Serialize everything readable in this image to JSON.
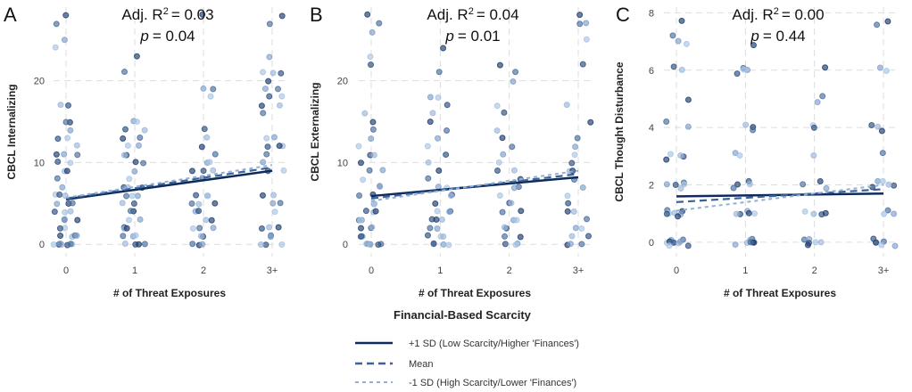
{
  "legend": {
    "title": "Financial-Based Scarcity",
    "entries": [
      {
        "label": "+1 SD (Low Scarcity/Higher 'Finances')",
        "color": "#0d2b5c",
        "dash": "solid"
      },
      {
        "label": "Mean",
        "color": "#3d6296",
        "dash": "dashed"
      },
      {
        "label": "-1 SD (High Scarcity/Lower 'Finances')",
        "color": "#8fb0d8",
        "dash": "dotted"
      }
    ]
  },
  "chart_data": [
    {
      "type": "scatter",
      "letter": "A",
      "title_r2": "Adj. R",
      "title_r2_val": "= 0.03",
      "title_p": "p",
      "title_p_val": "= 0.04",
      "xlabel": "# of Threat Exposures",
      "ylabel": "CBCL Internalizing",
      "categories": [
        "0",
        "1",
        "2",
        "3+"
      ],
      "yticks": [
        0,
        10,
        20
      ],
      "ylim": [
        -1.5,
        29
      ],
      "lines": [
        [
          5.5,
          9.0
        ],
        [
          5.6,
          9.4
        ],
        [
          5.7,
          9.7
        ]
      ],
      "points": [
        [
          28,
          27,
          25,
          24,
          17,
          17,
          15,
          15,
          14,
          13,
          13,
          12,
          11,
          11,
          11,
          10,
          10,
          9,
          9,
          8,
          7,
          6,
          6,
          6,
          5,
          5,
          5,
          4,
          4,
          4,
          3,
          3,
          3,
          2,
          2,
          1,
          1,
          1,
          1,
          0,
          0,
          0,
          0,
          0,
          0,
          0
        ],
        [
          23,
          21,
          15,
          15,
          14,
          14,
          13,
          13,
          12,
          12,
          11,
          11,
          10,
          10,
          9,
          8,
          7,
          7,
          7,
          6,
          6,
          6,
          5,
          5,
          4,
          4,
          3,
          3,
          2,
          2,
          2,
          1,
          1,
          1,
          0,
          0,
          0,
          0
        ],
        [
          28,
          19,
          19,
          18,
          14,
          13,
          12,
          11,
          10,
          10,
          9,
          9,
          9,
          8,
          6,
          6,
          6,
          5,
          5,
          5,
          4,
          4,
          4,
          3,
          3,
          2,
          2,
          2,
          1,
          1,
          0,
          0,
          0
        ],
        [
          28,
          27,
          23,
          21,
          21,
          21,
          20,
          19,
          19,
          18,
          18,
          17,
          17,
          16,
          13,
          13,
          12,
          12,
          12,
          11,
          10,
          9,
          9,
          6,
          6,
          5,
          5,
          4,
          2,
          2,
          2,
          1,
          1,
          0,
          0,
          0
        ]
      ]
    },
    {
      "type": "scatter",
      "letter": "B",
      "title_r2": "Adj. R",
      "title_r2_val": "= 0.04",
      "title_p": "p",
      "title_p_val": "= 0.01",
      "xlabel": "# of Threat Exposures",
      "ylabel": "CBCL Externalizing",
      "categories": [
        "0",
        "1",
        "2",
        "3+"
      ],
      "yticks": [
        0,
        10,
        20
      ],
      "ylim": [
        -1.5,
        29
      ],
      "lines": [
        [
          5.9,
          8.2
        ],
        [
          5.6,
          8.6
        ],
        [
          5.3,
          9.0
        ]
      ],
      "points": [
        [
          28,
          27,
          26,
          23,
          22,
          16,
          15,
          14,
          13,
          12,
          11,
          11,
          10,
          9,
          9,
          8,
          7,
          7,
          6,
          6,
          5,
          5,
          4,
          4,
          4,
          3,
          3,
          3,
          2,
          2,
          2,
          1,
          1,
          1,
          1,
          0,
          0,
          0,
          0,
          0,
          0
        ],
        [
          24,
          21,
          18,
          18,
          17,
          16,
          15,
          14,
          13,
          12,
          11,
          10,
          9,
          8,
          7,
          7,
          6,
          6,
          5,
          4,
          4,
          4,
          3,
          3,
          3,
          2,
          2,
          1,
          1,
          1,
          0,
          0,
          0,
          0
        ],
        [
          22,
          21,
          20,
          17,
          16,
          14,
          13,
          12,
          11,
          10,
          9,
          9,
          8,
          7,
          7,
          6,
          5,
          5,
          4,
          4,
          3,
          3,
          2,
          2,
          1,
          1,
          0,
          0,
          0
        ],
        [
          28,
          27,
          27,
          25,
          22,
          17,
          15,
          13,
          12,
          11,
          10,
          9,
          9,
          8,
          7,
          6,
          5,
          4,
          4,
          3,
          2,
          2,
          1,
          1,
          0,
          0,
          0
        ]
      ]
    },
    {
      "type": "scatter",
      "letter": "C",
      "title_r2": "Adj. R",
      "title_r2_val": "= 0.00",
      "title_p": "p",
      "title_p_val": "= 0.44",
      "xlabel": "# of Threat Exposures",
      "ylabel": "CBCL Thought Disturbance",
      "categories": [
        "0",
        "1",
        "2",
        "3+"
      ],
      "yticks": [
        0,
        2,
        4,
        6,
        8
      ],
      "ylim": [
        -0.5,
        8.2
      ],
      "lines": [
        [
          1.6,
          1.7
        ],
        [
          1.4,
          1.85
        ],
        [
          1.1,
          2.0
        ]
      ],
      "points": [
        [
          7.7,
          7.2,
          7,
          6.9,
          6.1,
          6,
          5,
          4.2,
          4,
          3.1,
          3,
          3,
          2.9,
          2.1,
          2,
          2,
          2,
          1.9,
          1.1,
          1.1,
          1,
          1,
          1,
          1,
          0.9,
          0.1,
          0.1,
          0,
          0,
          0,
          0,
          0,
          0,
          -0.1,
          -0.1
        ],
        [
          6.9,
          6.1,
          6,
          6,
          5.9,
          4.1,
          4,
          3.9,
          3.1,
          3,
          2.1,
          2,
          2,
          1.9,
          1.1,
          1,
          1,
          1,
          1,
          0.1,
          0.1,
          0,
          0,
          0,
          0,
          0,
          -0.1
        ],
        [
          6.1,
          5.1,
          4.9,
          4.1,
          4,
          3,
          2.1,
          2,
          1.9,
          1.1,
          1,
          1,
          1,
          0.1,
          0.1,
          0,
          0,
          0,
          -0.1
        ],
        [
          7.7,
          7.6,
          6.1,
          6,
          4.1,
          4,
          3.9,
          3.1,
          2.1,
          2.1,
          2,
          2,
          1.9,
          1.1,
          1,
          1,
          0.1,
          0,
          0,
          0,
          -0.1,
          -0.1
        ]
      ]
    }
  ]
}
